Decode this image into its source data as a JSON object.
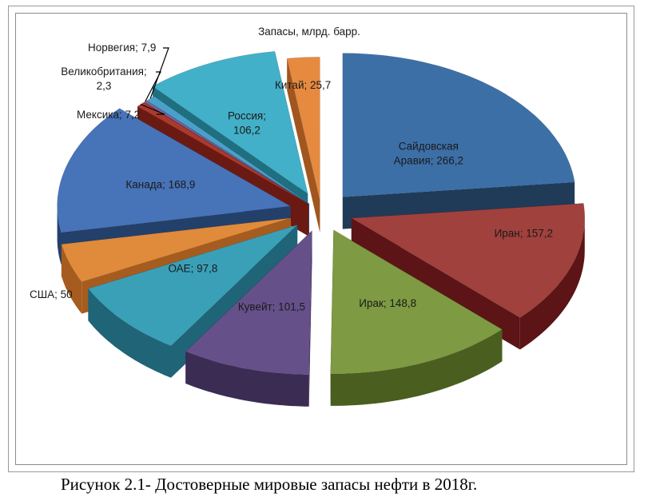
{
  "caption": "Рисунок 2.1- Достоверные мировые запасы нефти в 2018г.",
  "chart_data": {
    "type": "pie",
    "title": "Запасы, млрд. барр.",
    "categories": [
      "Сайдовская Аравия",
      "Иран",
      "Ирак",
      "Кувейт",
      "ОАЕ",
      "США",
      "Канада",
      "Мексика",
      "Великобритания",
      "Норвегия",
      "Россия",
      "Китай"
    ],
    "values": [
      266.2,
      157.2,
      148.8,
      101.5,
      97.8,
      50,
      168.9,
      7.2,
      2.3,
      7.9,
      106.2,
      25.7
    ],
    "labels": [
      "Сайдовская Аравия; 266,2",
      "Иран; 157,2",
      "Ирак; 148,8",
      "Кувейт; 101,5",
      "ОАЕ; 97,8",
      "США; 50",
      "Канада; 168,9",
      "Мексика; 7,2",
      "Великобритания; 2,3",
      "Норвегия; 7,9",
      "Россия; 106,2",
      "Китай; 25,7"
    ],
    "colors": [
      "#3d6fa7",
      "#a0413d",
      "#7e9a43",
      "#66508a",
      "#3aa0b8",
      "#e08a3c",
      "#4773b8",
      "#a93a2c",
      "#7f63a0",
      "#4aa0c8",
      "#42b0c8",
      "#e68a40"
    ],
    "side_colors": [
      "#1f3b58",
      "#5c1416",
      "#4a5e1f",
      "#3b2c54",
      "#1f6477",
      "#a65c1f",
      "#23406b",
      "#6a1a12",
      "#4a3a66",
      "#2a6f90",
      "#1f6f80",
      "#a0561e"
    ],
    "exploded": true,
    "three_d": true,
    "legend": "none"
  }
}
